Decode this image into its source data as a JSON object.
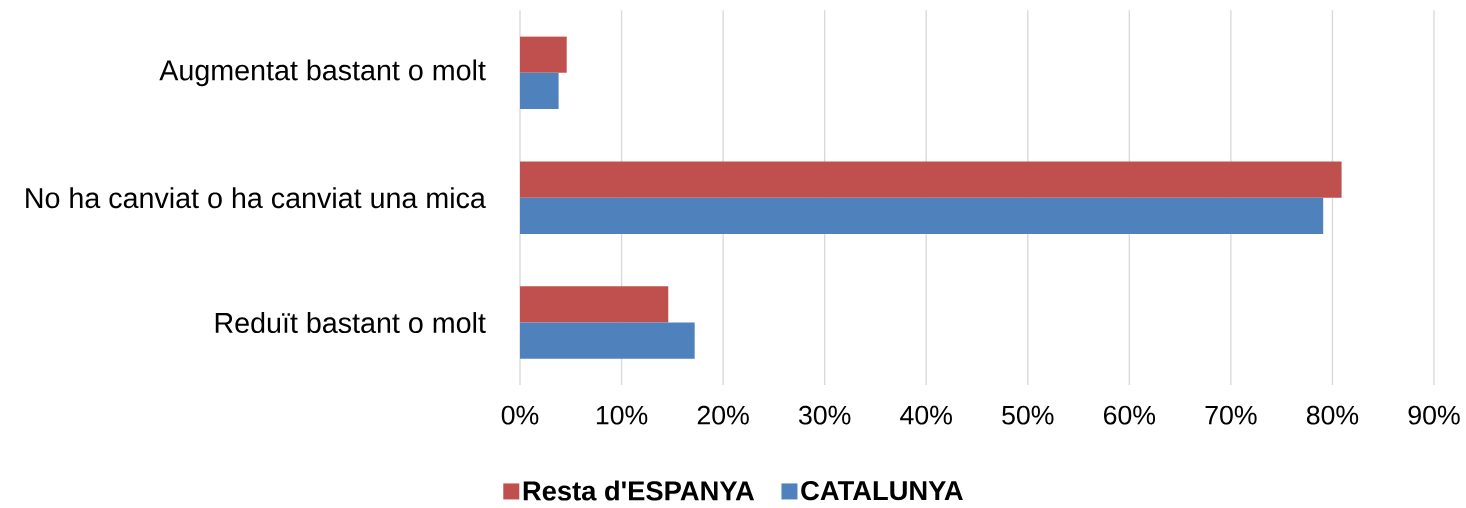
{
  "chart_data": {
    "type": "bar",
    "orientation": "horizontal",
    "categories": [
      "Augmentat bastant o molt",
      "No ha canviat o ha canviat una mica",
      "Reduït bastant o molt"
    ],
    "series": [
      {
        "name": "Resta d'ESPANYA",
        "color": "#c0504d",
        "values": [
          4.6,
          80.9,
          14.6
        ]
      },
      {
        "name": "CATALUNYA",
        "color": "#4f81bd",
        "values": [
          3.8,
          79.1,
          17.2
        ]
      }
    ],
    "xlim": [
      0,
      90
    ],
    "xticks": [
      {
        "value": 0,
        "label": "0%"
      },
      {
        "value": 10,
        "label": "10%"
      },
      {
        "value": 20,
        "label": "20%"
      },
      {
        "value": 30,
        "label": "30%"
      },
      {
        "value": 40,
        "label": "40%"
      },
      {
        "value": 50,
        "label": "50%"
      },
      {
        "value": 60,
        "label": "60%"
      },
      {
        "value": 70,
        "label": "70%"
      },
      {
        "value": 80,
        "label": "80%"
      },
      {
        "value": 90,
        "label": "90%"
      }
    ],
    "grid": "x",
    "legend": "bottom"
  }
}
